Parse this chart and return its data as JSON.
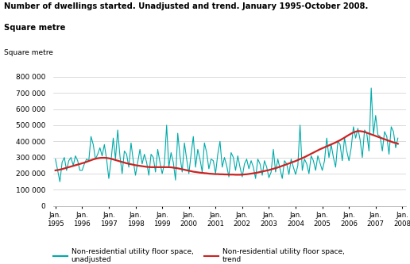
{
  "title_line1": "Number of dwellings started. Unadjusted and trend. January 1995-October 2008.",
  "title_line2": "Square metre",
  "axis_ylabel": "Square metre",
  "ylim": [
    0,
    850000
  ],
  "yticks": [
    0,
    100000,
    200000,
    300000,
    400000,
    500000,
    600000,
    700000,
    800000
  ],
  "ytick_labels": [
    "0",
    "100 000",
    "200 000",
    "300 000",
    "400 000",
    "500 000",
    "600 000",
    "700 000",
    "800 000"
  ],
  "unadjusted_color": "#00AAAA",
  "trend_color": "#CC2222",
  "legend_unadjusted": "Non-residential utility floor space,\nunadjusted",
  "legend_trend": "Non-residential utility floor space,\ntrend",
  "background_color": "#ffffff",
  "unadjusted": [
    290000,
    220000,
    150000,
    270000,
    300000,
    220000,
    280000,
    300000,
    250000,
    310000,
    280000,
    220000,
    220000,
    260000,
    290000,
    280000,
    430000,
    380000,
    290000,
    320000,
    360000,
    310000,
    380000,
    290000,
    170000,
    280000,
    420000,
    290000,
    470000,
    310000,
    200000,
    340000,
    320000,
    240000,
    390000,
    280000,
    190000,
    270000,
    350000,
    260000,
    320000,
    270000,
    190000,
    320000,
    300000,
    210000,
    350000,
    270000,
    200000,
    260000,
    500000,
    240000,
    330000,
    270000,
    160000,
    450000,
    310000,
    210000,
    390000,
    290000,
    200000,
    320000,
    430000,
    240000,
    350000,
    290000,
    210000,
    390000,
    330000,
    230000,
    290000,
    280000,
    200000,
    320000,
    400000,
    240000,
    300000,
    250000,
    180000,
    330000,
    300000,
    220000,
    310000,
    240000,
    180000,
    260000,
    290000,
    230000,
    280000,
    240000,
    170000,
    290000,
    260000,
    190000,
    280000,
    240000,
    175000,
    210000,
    350000,
    210000,
    290000,
    230000,
    170000,
    280000,
    260000,
    195000,
    290000,
    240000,
    195000,
    250000,
    500000,
    220000,
    290000,
    260000,
    200000,
    310000,
    280000,
    220000,
    310000,
    265000,
    220000,
    280000,
    420000,
    300000,
    380000,
    300000,
    240000,
    400000,
    380000,
    280000,
    420000,
    340000,
    280000,
    360000,
    490000,
    420000,
    480000,
    410000,
    300000,
    470000,
    450000,
    340000,
    730000,
    440000,
    560000,
    440000,
    430000,
    340000,
    460000,
    430000,
    320000,
    490000,
    460000,
    360000,
    420000
  ],
  "trend": [
    220000,
    222000,
    225000,
    228000,
    232000,
    236000,
    240000,
    244000,
    248000,
    252000,
    256000,
    260000,
    264000,
    268000,
    273000,
    278000,
    283000,
    288000,
    292000,
    295000,
    297000,
    298000,
    298000,
    297000,
    295000,
    292000,
    288000,
    284000,
    280000,
    276000,
    272000,
    268000,
    264000,
    261000,
    258000,
    255000,
    252000,
    250000,
    248000,
    246000,
    244000,
    242000,
    241000,
    240000,
    240000,
    240000,
    240000,
    240000,
    240000,
    240000,
    240000,
    240000,
    239000,
    237000,
    235000,
    233000,
    230000,
    227000,
    224000,
    221000,
    218000,
    215000,
    212000,
    210000,
    208000,
    206000,
    205000,
    203000,
    202000,
    200000,
    199000,
    198000,
    197000,
    197000,
    196000,
    196000,
    195000,
    195000,
    194000,
    194000,
    194000,
    193000,
    193000,
    193000,
    194000,
    195000,
    196000,
    198000,
    200000,
    202000,
    204000,
    207000,
    210000,
    213000,
    216000,
    219000,
    222000,
    226000,
    230000,
    234000,
    238000,
    243000,
    248000,
    253000,
    258000,
    263000,
    268000,
    273000,
    278000,
    284000,
    290000,
    296000,
    302000,
    309000,
    316000,
    323000,
    330000,
    337000,
    344000,
    351000,
    357000,
    363000,
    369000,
    375000,
    381000,
    387000,
    393000,
    400000,
    407000,
    415000,
    423000,
    432000,
    440000,
    448000,
    455000,
    460000,
    463000,
    463000,
    461000,
    458000,
    453000,
    448000,
    443000,
    438000,
    433000,
    428000,
    423000,
    418000,
    413000,
    408000,
    403000,
    398000,
    393000,
    390000,
    385000
  ]
}
